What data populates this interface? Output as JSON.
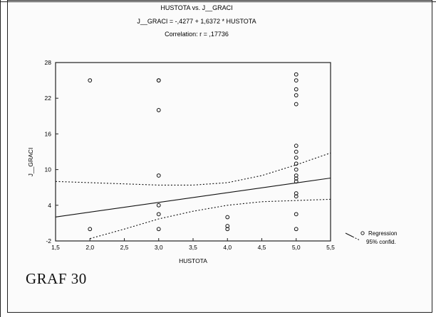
{
  "chart_data": {
    "type": "scatter",
    "title": "HUSTOTA vs. J__GRACI",
    "equation": "J__GRACI = -,4277 + 1,6372 * HUSTOTA",
    "correlation": "Correlation: r = ,17736",
    "xlabel": "HUSTOTA",
    "ylabel": "J__GRACI",
    "xlim": [
      1.5,
      5.5
    ],
    "ylim": [
      -2,
      28
    ],
    "x_ticks": [
      "1,5",
      "2,0",
      "2,5",
      "3,0",
      "3,5",
      "4,0",
      "4,5",
      "5,0",
      "5,5"
    ],
    "y_ticks": [
      "-2",
      "4",
      "10",
      "16",
      "22",
      "28"
    ],
    "points": [
      {
        "x": 2,
        "y": 25
      },
      {
        "x": 2,
        "y": 0
      },
      {
        "x": 3,
        "y": 25
      },
      {
        "x": 3,
        "y": 25
      },
      {
        "x": 3,
        "y": 20
      },
      {
        "x": 3,
        "y": 9
      },
      {
        "x": 3,
        "y": 4
      },
      {
        "x": 3,
        "y": 2.5
      },
      {
        "x": 3,
        "y": 0
      },
      {
        "x": 4,
        "y": 2
      },
      {
        "x": 4,
        "y": 0.5
      },
      {
        "x": 4,
        "y": 0
      },
      {
        "x": 5,
        "y": 26
      },
      {
        "x": 5,
        "y": 25
      },
      {
        "x": 5,
        "y": 23.5
      },
      {
        "x": 5,
        "y": 22.5
      },
      {
        "x": 5,
        "y": 21
      },
      {
        "x": 5,
        "y": 14
      },
      {
        "x": 5,
        "y": 13
      },
      {
        "x": 5,
        "y": 12
      },
      {
        "x": 5,
        "y": 11
      },
      {
        "x": 5,
        "y": 10
      },
      {
        "x": 5,
        "y": 9
      },
      {
        "x": 5,
        "y": 8.5
      },
      {
        "x": 5,
        "y": 8
      },
      {
        "x": 5,
        "y": 6
      },
      {
        "x": 5,
        "y": 5.5
      },
      {
        "x": 5,
        "y": 2.5
      },
      {
        "x": 5,
        "y": 0
      }
    ],
    "regression": {
      "intercept": -0.4277,
      "slope": 1.6372
    },
    "confidence_band": {
      "upper": [
        [
          1.5,
          8.0
        ],
        [
          2.0,
          7.8
        ],
        [
          2.5,
          7.6
        ],
        [
          3.0,
          7.4
        ],
        [
          3.5,
          7.4
        ],
        [
          4.0,
          7.8
        ],
        [
          4.5,
          9.0
        ],
        [
          5.0,
          10.8
        ],
        [
          5.5,
          12.8
        ]
      ],
      "lower": [
        [
          2.0,
          -1.6
        ],
        [
          2.5,
          0.0
        ],
        [
          3.0,
          1.7
        ],
        [
          3.5,
          3.0
        ],
        [
          4.0,
          4.0
        ],
        [
          4.5,
          4.6
        ],
        [
          5.0,
          4.8
        ],
        [
          5.5,
          5.0
        ]
      ]
    },
    "legend": [
      "Regression",
      "95% confid."
    ],
    "legend_position": "right",
    "grid": false
  },
  "page": {
    "caption": "GRAF 30"
  }
}
